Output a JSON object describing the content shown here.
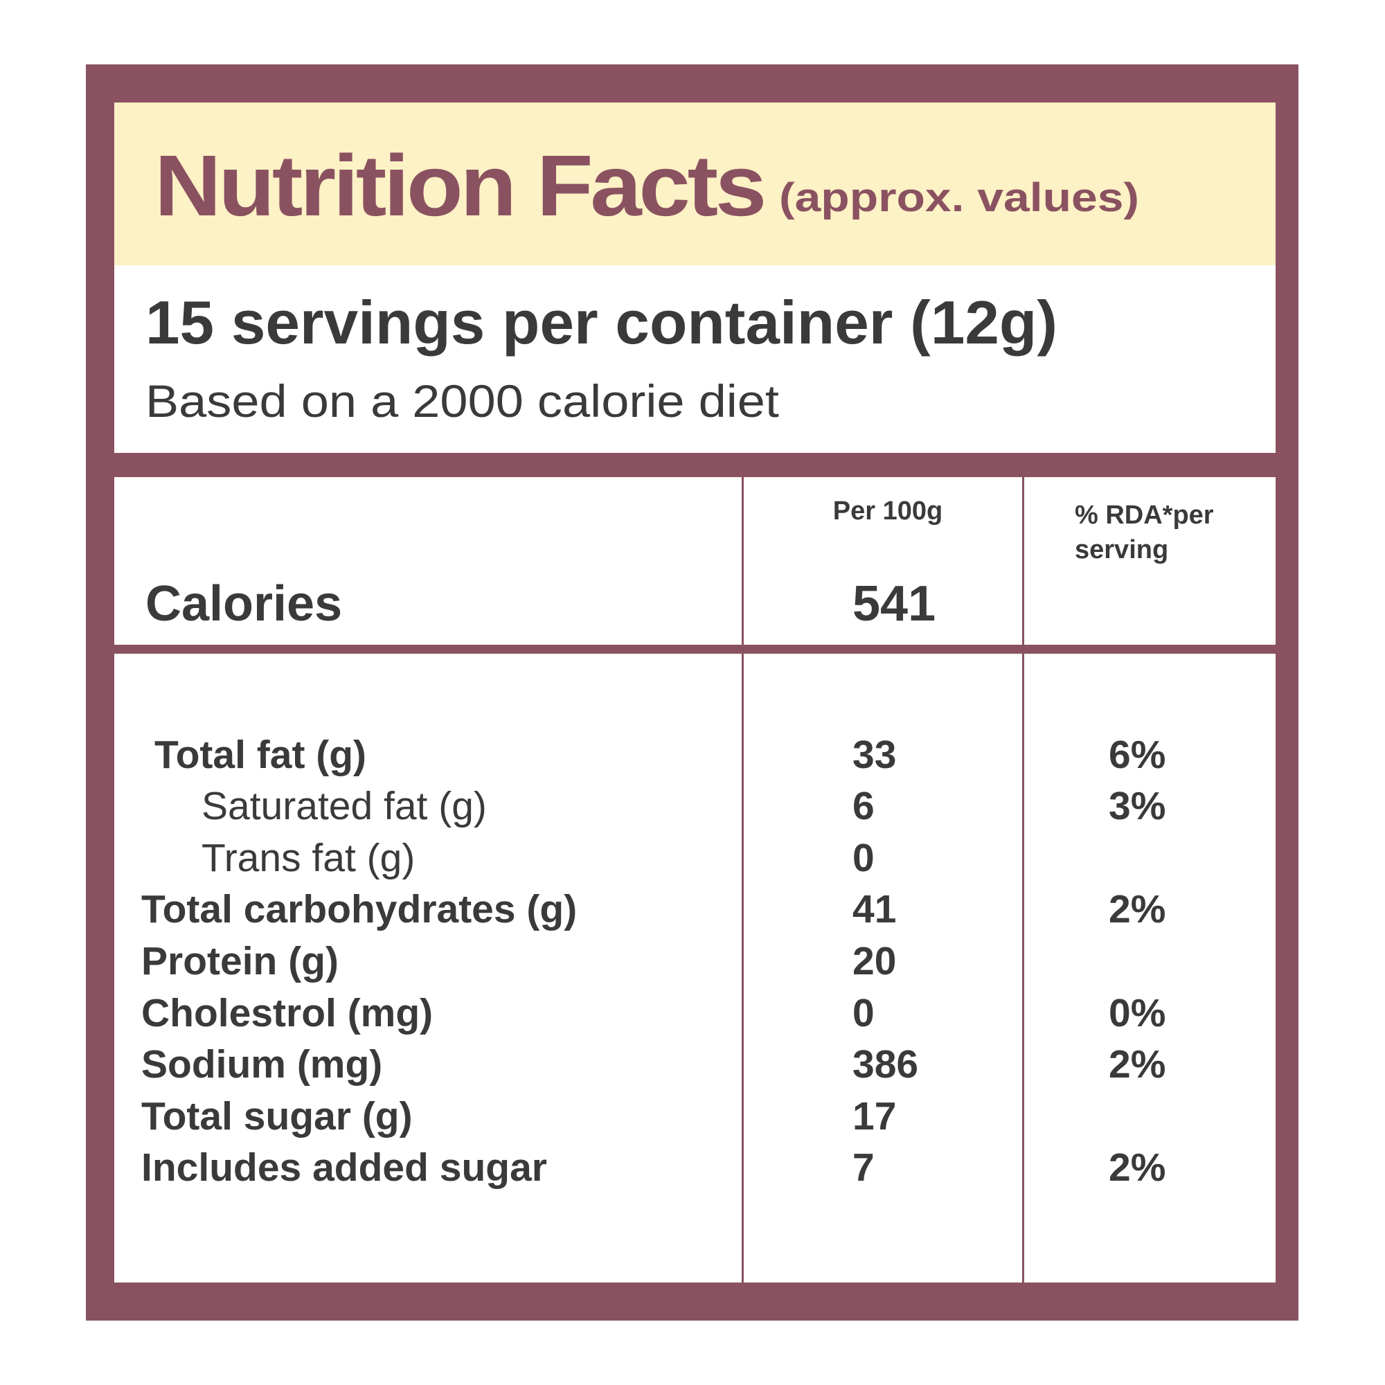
{
  "header": {
    "title": "Nutrition Facts",
    "subtitle": "(approx. values)"
  },
  "serving": {
    "servings": "15 servings per container (12g)",
    "basis": "Based on a 2000 calorie diet"
  },
  "table": {
    "columns": [
      "Per 100g",
      "% RDA*per serving"
    ],
    "calories": {
      "label": "Calories",
      "per_100g": "541"
    },
    "rows": [
      [
        "Total fat (g)",
        "33",
        "6%"
      ],
      [
        "Saturated fat (g)",
        "6",
        "3%"
      ],
      [
        "Trans fat (g)",
        "0",
        null
      ],
      [
        "Total carbohydrates (g)",
        "41",
        "2%"
      ],
      [
        "Protein (g)",
        "20",
        null
      ],
      [
        "Cholestrol (mg)",
        "0",
        "0%"
      ],
      [
        "Sodium (mg)",
        "386",
        "2%"
      ],
      [
        "Total sugar (g)",
        "17",
        null
      ],
      [
        "Includes added sugar",
        "7",
        "2%"
      ]
    ]
  }
}
